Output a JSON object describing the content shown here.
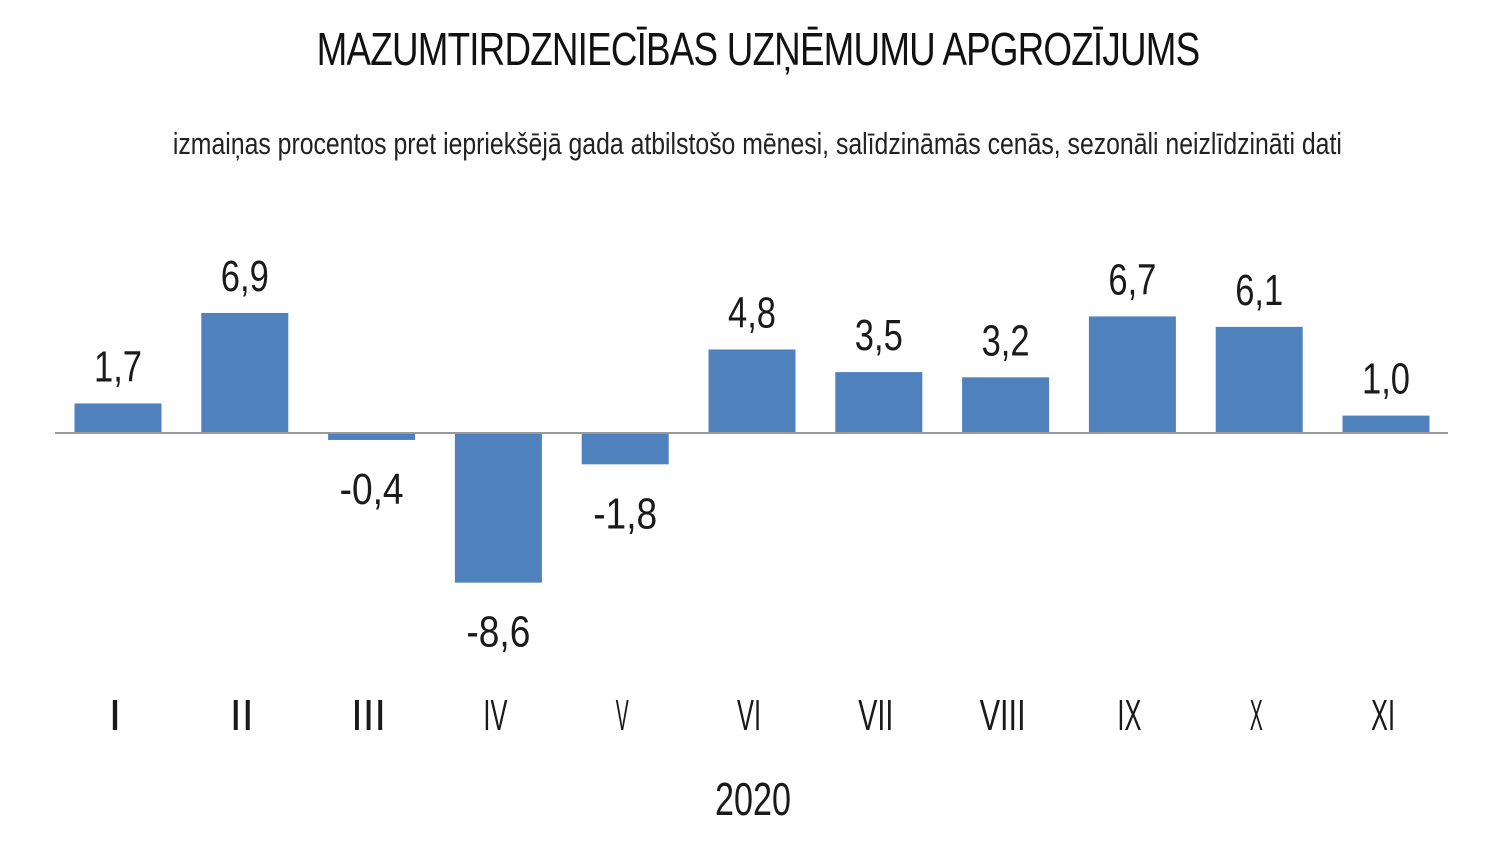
{
  "chart_data": {
    "type": "bar",
    "title": "MAZUMTIRDZNIECĪBAS UZŅĒMUMU APGROZĪJUMS",
    "subtitle": "izmaiņas procentos pret iepriekšējā gada atbilstošo mēnesi, salīdzināmās cenās, sezonāli neizlīdzināti dati",
    "xlabel": "2020",
    "ylabel": "",
    "categories": [
      "I",
      "II",
      "III",
      "IV",
      "V",
      "VI",
      "VII",
      "VIII",
      "IX",
      "X",
      "XI"
    ],
    "values": [
      1.7,
      6.9,
      -0.4,
      -8.6,
      -1.8,
      4.8,
      3.5,
      3.2,
      6.7,
      6.1,
      1.0
    ],
    "value_labels": [
      "1,7",
      "6,9",
      "-0,4",
      "-8,6",
      "-1,8",
      "4,8",
      "3,5",
      "3,2",
      "6,7",
      "6,1",
      "1,0"
    ],
    "ylim": [
      -8.6,
      6.9
    ],
    "grid": false,
    "legend": "none",
    "bar_color": "#4f81bd",
    "axis_color": "#9a9a9a"
  }
}
